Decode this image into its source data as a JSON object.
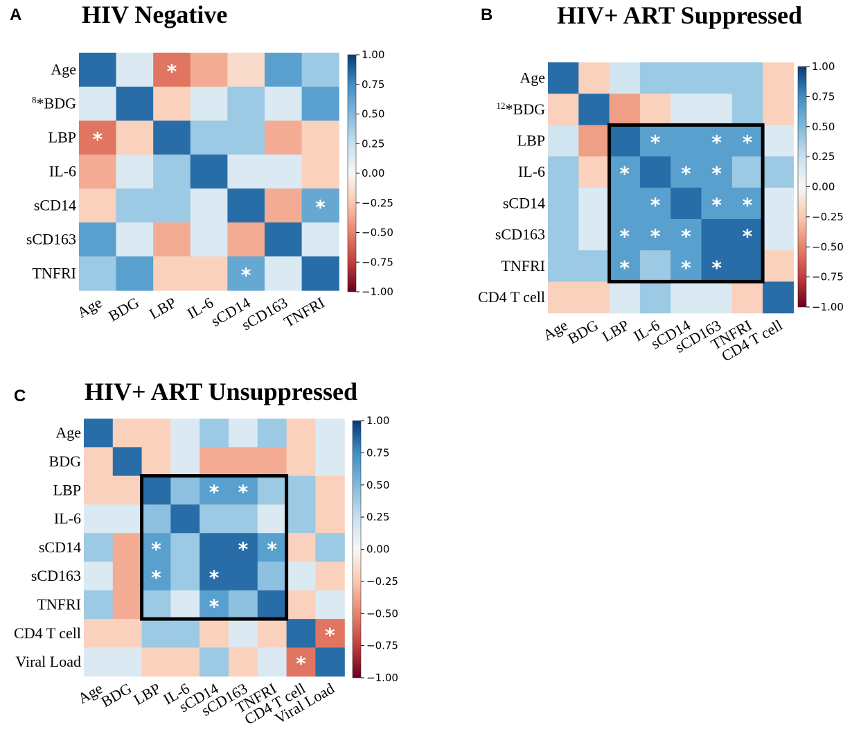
{
  "figure_colors": {
    "highlight_box": "#000000",
    "star": "#ffffff",
    "colorbar_stops": [
      {
        "v": -1.0,
        "c": "#67001f"
      },
      {
        "v": -0.75,
        "c": "#c43c3c"
      },
      {
        "v": -0.5,
        "c": "#e7836b"
      },
      {
        "v": -0.25,
        "c": "#fbc8ae"
      },
      {
        "v": 0.0,
        "c": "#f7f7f7"
      },
      {
        "v": 0.25,
        "c": "#c7e0ef"
      },
      {
        "v": 0.5,
        "c": "#80b9db"
      },
      {
        "v": 0.75,
        "c": "#3f8fc5"
      },
      {
        "v": 1.0,
        "c": "#063a7a"
      }
    ]
  },
  "chart_data": [
    {
      "type": "heatmap",
      "panel": "A",
      "title": "HIV Negative",
      "row_labels": [
        {
          "text": "Age"
        },
        {
          "sup": "8",
          "text": "*BDG"
        },
        {
          "text": "LBP"
        },
        {
          "text": "IL-6"
        },
        {
          "text": "sCD14"
        },
        {
          "text": "sCD163"
        },
        {
          "text": "TNFRI"
        }
      ],
      "col_labels": [
        "Age",
        "BDG",
        "LBP",
        "IL-6",
        "sCD14",
        "sCD163",
        "TNFRI"
      ],
      "matrix": [
        [
          0.85,
          0.15,
          -0.55,
          -0.35,
          -0.15,
          0.65,
          0.4
        ],
        [
          0.15,
          0.85,
          -0.2,
          0.15,
          0.4,
          0.15,
          0.65
        ],
        [
          -0.55,
          -0.2,
          0.85,
          0.4,
          0.4,
          -0.35,
          -0.2
        ],
        [
          -0.35,
          0.15,
          0.4,
          0.85,
          0.15,
          0.15,
          -0.2
        ],
        [
          -0.2,
          0.4,
          0.4,
          0.15,
          0.85,
          -0.35,
          0.6
        ],
        [
          0.65,
          0.15,
          -0.35,
          0.15,
          -0.35,
          0.85,
          0.15
        ],
        [
          0.4,
          0.65,
          -0.2,
          -0.2,
          0.6,
          0.15,
          0.85
        ]
      ],
      "significant": [
        [
          0,
          2
        ],
        [
          2,
          0
        ],
        [
          4,
          6
        ],
        [
          6,
          4
        ]
      ],
      "highlight_box": null,
      "colorbar": {
        "vmin": -1.0,
        "vmax": 1.0,
        "ticks": [
          "1.00",
          "0.75",
          "0.50",
          "0.25",
          "0.00",
          "−0.25",
          "−0.50",
          "−0.75",
          "−1.00"
        ]
      }
    },
    {
      "type": "heatmap",
      "panel": "B",
      "title": "HIV+ ART Suppressed",
      "row_labels": [
        {
          "text": "Age"
        },
        {
          "sup": "12",
          "text": "*BDG"
        },
        {
          "text": "LBP"
        },
        {
          "text": "IL-6"
        },
        {
          "text": "sCD14"
        },
        {
          "text": "sCD163"
        },
        {
          "text": "TNFRI"
        },
        {
          "text": "CD4 T cell"
        }
      ],
      "col_labels": [
        "Age",
        "BDG",
        "LBP",
        "IL-6",
        "sCD14",
        "sCD163",
        "TNFRI",
        "CD4 T cell"
      ],
      "matrix": [
        [
          0.85,
          -0.2,
          0.2,
          0.4,
          0.4,
          0.4,
          0.4,
          -0.2
        ],
        [
          -0.2,
          0.85,
          -0.4,
          -0.2,
          0.15,
          0.15,
          0.4,
          -0.2
        ],
        [
          0.2,
          -0.4,
          0.85,
          0.65,
          0.65,
          0.65,
          0.65,
          0.15
        ],
        [
          0.4,
          -0.2,
          0.65,
          0.85,
          0.65,
          0.65,
          0.4,
          0.4
        ],
        [
          0.4,
          0.15,
          0.65,
          0.65,
          0.85,
          0.65,
          0.65,
          0.15
        ],
        [
          0.4,
          0.15,
          0.65,
          0.65,
          0.65,
          0.85,
          0.85,
          0.15
        ],
        [
          0.4,
          0.4,
          0.65,
          0.4,
          0.65,
          0.85,
          0.85,
          -0.2
        ],
        [
          -0.2,
          -0.2,
          0.15,
          0.4,
          0.15,
          0.15,
          -0.2,
          0.85
        ]
      ],
      "significant": [
        [
          2,
          3
        ],
        [
          2,
          5
        ],
        [
          2,
          6
        ],
        [
          3,
          2
        ],
        [
          3,
          4
        ],
        [
          3,
          5
        ],
        [
          4,
          3
        ],
        [
          4,
          5
        ],
        [
          4,
          6
        ],
        [
          5,
          2
        ],
        [
          5,
          3
        ],
        [
          5,
          4
        ],
        [
          5,
          6
        ],
        [
          6,
          2
        ],
        [
          6,
          4
        ],
        [
          6,
          5
        ]
      ],
      "highlight_box": {
        "row_start": 2,
        "row_end": 6,
        "col_start": 2,
        "col_end": 6
      },
      "colorbar": {
        "vmin": -1.0,
        "vmax": 1.0,
        "ticks": [
          "1.00",
          "0.75",
          "0.50",
          "0.25",
          "0.00",
          "−0.25",
          "−0.50",
          "−0.75",
          "−1.00"
        ]
      }
    },
    {
      "type": "heatmap",
      "panel": "C",
      "title": "HIV+ ART Unsuppressed",
      "row_labels": [
        {
          "text": "Age"
        },
        {
          "text": "BDG"
        },
        {
          "text": "LBP"
        },
        {
          "text": "IL-6"
        },
        {
          "text": "sCD14"
        },
        {
          "text": "sCD163"
        },
        {
          "text": "TNFRI"
        },
        {
          "text": "CD4 T cell"
        },
        {
          "text": "Viral Load"
        }
      ],
      "col_labels": [
        "Age",
        "BDG",
        "LBP",
        "IL-6",
        "sCD14",
        "sCD163",
        "TNFRI",
        "CD4 T cell",
        "Viral Load"
      ],
      "matrix": [
        [
          0.85,
          -0.2,
          -0.2,
          0.15,
          0.4,
          0.15,
          0.4,
          -0.2,
          0.15
        ],
        [
          -0.2,
          0.85,
          -0.2,
          0.15,
          -0.35,
          -0.35,
          -0.35,
          -0.2,
          0.15
        ],
        [
          -0.2,
          -0.2,
          0.85,
          0.45,
          0.65,
          0.65,
          0.4,
          0.4,
          -0.2
        ],
        [
          0.15,
          0.15,
          0.45,
          0.85,
          0.4,
          0.4,
          0.15,
          0.4,
          -0.2
        ],
        [
          0.4,
          -0.35,
          0.65,
          0.4,
          0.85,
          0.85,
          0.65,
          -0.2,
          0.4
        ],
        [
          0.15,
          -0.35,
          0.65,
          0.4,
          0.85,
          0.85,
          0.45,
          0.15,
          -0.2
        ],
        [
          0.4,
          -0.35,
          0.4,
          0.15,
          0.65,
          0.45,
          0.85,
          -0.2,
          0.15
        ],
        [
          -0.2,
          -0.2,
          0.4,
          0.4,
          -0.2,
          0.15,
          -0.2,
          0.85,
          -0.55
        ],
        [
          0.15,
          0.15,
          -0.2,
          -0.2,
          0.4,
          -0.2,
          0.15,
          -0.55,
          0.85
        ]
      ],
      "significant": [
        [
          2,
          4
        ],
        [
          2,
          5
        ],
        [
          4,
          2
        ],
        [
          4,
          5
        ],
        [
          4,
          6
        ],
        [
          5,
          2
        ],
        [
          5,
          4
        ],
        [
          6,
          4
        ],
        [
          7,
          8
        ],
        [
          8,
          7
        ]
      ],
      "highlight_box": {
        "row_start": 2,
        "row_end": 6,
        "col_start": 2,
        "col_end": 6
      },
      "colorbar": {
        "vmin": -1.0,
        "vmax": 1.0,
        "ticks": [
          "1.00",
          "0.75",
          "0.50",
          "0.25",
          "0.00",
          "−0.25",
          "−0.50",
          "−0.75",
          "−1.00"
        ]
      }
    }
  ]
}
